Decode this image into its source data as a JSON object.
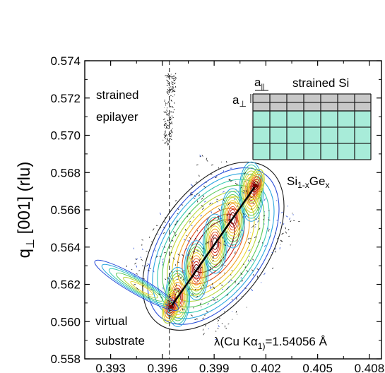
{
  "chart_data": {
    "type": "heatmap",
    "title": "",
    "xlabel": "",
    "ylabel": "q⊥ [001] (rlu)",
    "ylabel_main": "q",
    "ylabel_sub": "⊥",
    "ylabel_rest": " [001] (rlu)",
    "xlim": [
      0.3915,
      0.4087
    ],
    "ylim": [
      0.558,
      0.574
    ],
    "x_ticks": [
      0.393,
      0.396,
      0.399,
      0.402,
      0.405,
      0.408
    ],
    "x_tick_labels": [
      "0.393",
      "0.396",
      "0.399",
      "0.402",
      "0.405",
      "0.408"
    ],
    "y_ticks": [
      0.558,
      0.56,
      0.562,
      0.564,
      0.566,
      0.568,
      0.57,
      0.572,
      0.574
    ],
    "y_tick_labels": [
      "0.558",
      "0.560",
      "0.562",
      "0.564",
      "0.566",
      "0.568",
      "0.570",
      "0.572",
      "0.574"
    ],
    "grid": false,
    "dashed_line_x": 0.3964,
    "relaxation_line": {
      "from": [
        0.3965,
        0.5608
      ],
      "to": [
        0.4014,
        0.5673
      ]
    },
    "peaks": [
      {
        "name": "virtual substrate",
        "x": 0.3965,
        "y": 0.5608
      },
      {
        "name": "strained Si",
        "x": 0.4014,
        "y": 0.5673
      },
      {
        "name": "strained epilayer",
        "x": 0.3964,
        "y": 0.5715
      }
    ],
    "contour_colors": [
      "#1a1a1a",
      "#2b4fd8",
      "#2aa6e0",
      "#35c9b0",
      "#58c95a",
      "#b6d63a",
      "#e8d72a",
      "#f0a21e",
      "#e2531b",
      "#c61b14",
      "#7a0000"
    ],
    "annotations": {
      "strained_epilayer_line1": "strained",
      "strained_epilayer_line2": "epilayer",
      "virtual_substrate_line1": "virtual",
      "virtual_substrate_line2": "substrate",
      "wavelength_prefix": "λ(Cu Kα",
      "wavelength_sub": "1)",
      "wavelength_suffix": "=1.54056 Å"
    },
    "inset": {
      "a_parallel": "a",
      "a_parallel_sub": "||",
      "a_perp": "a",
      "a_perp_sub": "⊥",
      "strained_si_label": "strained Si",
      "sige_main": "Si",
      "sige_sub1": "1-x",
      "sige_mid": "Ge",
      "sige_sub2": "x",
      "cap_color": "#c8c8c8",
      "substrate_color": "#a8ecd9",
      "grid_color": "#222222"
    }
  }
}
